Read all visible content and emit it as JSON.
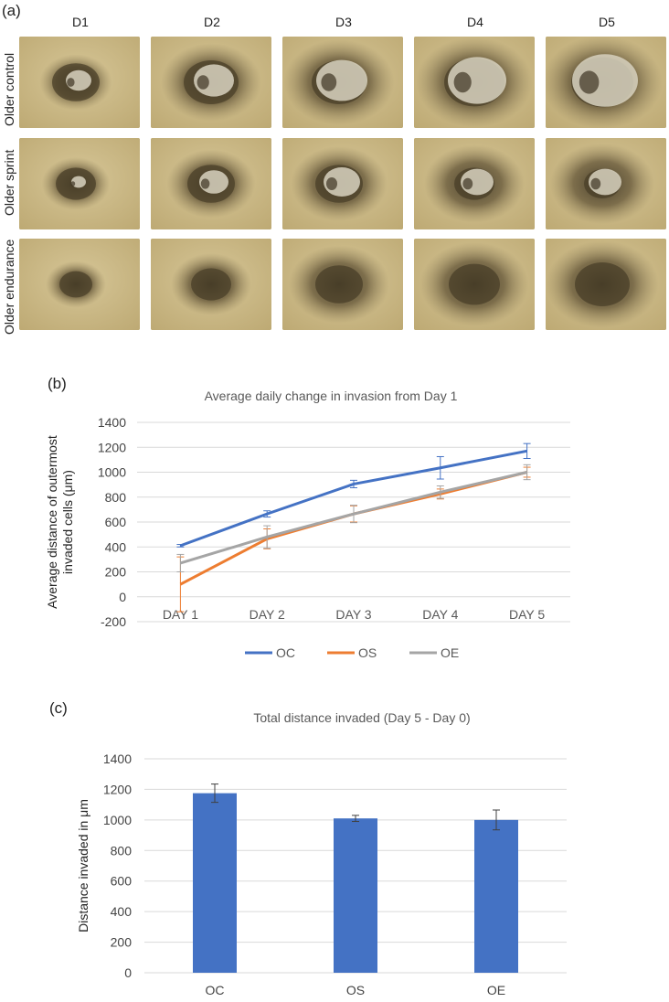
{
  "panel_a": {
    "label": "(a)",
    "columns": [
      "D1",
      "D2",
      "D3",
      "D4",
      "D5"
    ],
    "rows": [
      "Older control",
      "Older sprint",
      "Older endurance"
    ]
  },
  "panel_b": {
    "label": "(b)"
  },
  "panel_c": {
    "label": "(c)"
  },
  "chart_data": [
    {
      "type": "line",
      "title": "Average daily change in invasion from Day 1",
      "xlabel": "",
      "ylabel": "Average distance of outermost invaded cells (μm)",
      "ylabel_lines": [
        "Average distance of outermost",
        "invaded cells (μm)"
      ],
      "categories": [
        "DAY 1",
        "DAY 2",
        "DAY 3",
        "DAY 4",
        "DAY 5"
      ],
      "ylim": [
        -200,
        1400
      ],
      "yticks": [
        -200,
        0,
        200,
        400,
        600,
        800,
        1000,
        1200,
        1400
      ],
      "grid": true,
      "legend": "bottom",
      "series": [
        {
          "name": "OC",
          "color": "#4472c4",
          "values": [
            410,
            665,
            905,
            1035,
            1170
          ],
          "errors": [
            10,
            25,
            30,
            90,
            60
          ]
        },
        {
          "name": "OS",
          "color": "#ed7d31",
          "values": [
            100,
            465,
            665,
            825,
            1000
          ],
          "errors": [
            220,
            80,
            65,
            40,
            40
          ]
        },
        {
          "name": "OE",
          "color": "#a5a5a5",
          "values": [
            270,
            480,
            665,
            840,
            1000
          ],
          "errors": [
            70,
            90,
            70,
            50,
            60
          ]
        }
      ]
    },
    {
      "type": "bar",
      "title": "Total distance invaded (Day 5 - Day 0)",
      "xlabel": "",
      "ylabel": "Distance invaded in μm",
      "categories": [
        "OC",
        "OS",
        "OE"
      ],
      "values": [
        1175,
        1010,
        1000
      ],
      "errors": [
        60,
        20,
        65
      ],
      "ylim": [
        0,
        1400
      ],
      "yticks": [
        0,
        200,
        400,
        600,
        800,
        1000,
        1200,
        1400
      ],
      "grid": true,
      "color": "#4472c4"
    }
  ]
}
